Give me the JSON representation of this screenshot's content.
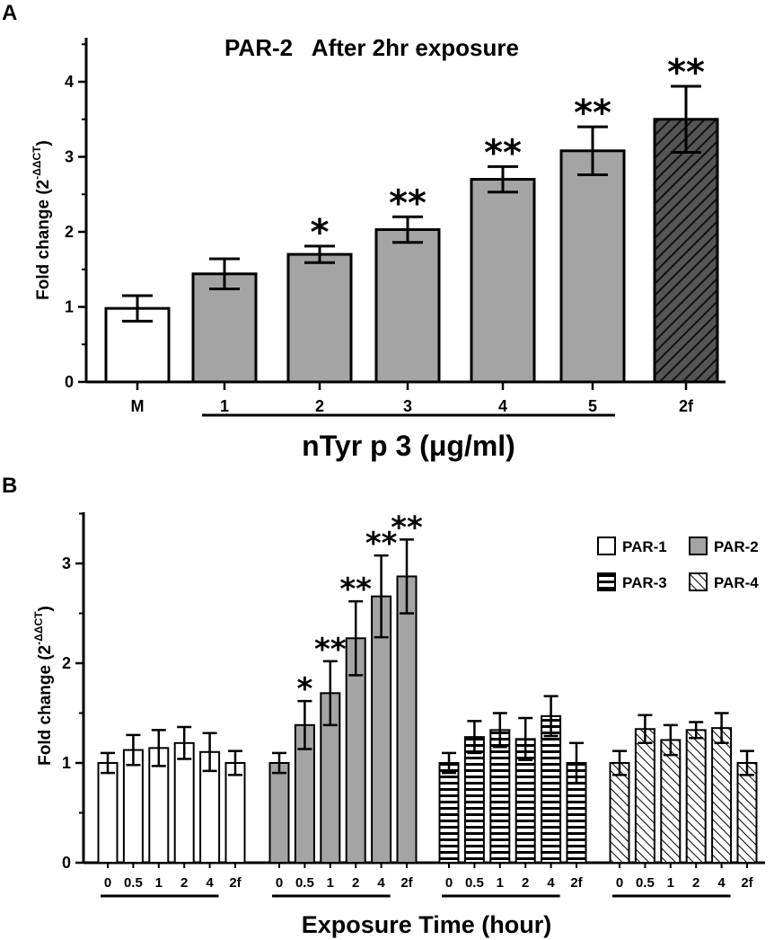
{
  "chart_data": [
    {
      "panel_label": "A",
      "type": "bar",
      "title": "PAR-2   After 2hr exposure",
      "ylabel": "Fold change (2",
      "ylabel_sup": "-ΔΔCT",
      "ylabel_close": ")",
      "xlabel": "nTyr p 3 (μg/ml)",
      "ylim": [
        0,
        4.5
      ],
      "yticks": [
        "0",
        "1",
        "2",
        "3",
        "4"
      ],
      "categories": [
        "M",
        "1",
        "2",
        "3",
        "4",
        "5",
        "2f"
      ],
      "values": [
        0.98,
        1.44,
        1.7,
        2.03,
        2.7,
        3.08,
        3.5
      ],
      "errors": [
        0.17,
        0.2,
        0.11,
        0.17,
        0.17,
        0.32,
        0.44
      ],
      "fills": [
        "white",
        "gray",
        "gray",
        "gray",
        "gray",
        "gray",
        "hatch"
      ],
      "significance": [
        "",
        "",
        "*",
        "**",
        "**",
        "**",
        "**"
      ],
      "underline_categories": [
        "1",
        "5"
      ]
    },
    {
      "panel_label": "B",
      "type": "bar",
      "ylabel": "Fold change (2",
      "ylabel_sup": "-ΔΔCT",
      "ylabel_close": ")",
      "xlabel": "Exposure Time (hour)",
      "ylim": [
        0,
        3.5
      ],
      "yticks": [
        "0",
        "1",
        "2",
        "3"
      ],
      "categories": [
        "0",
        "0.5",
        "1",
        "2",
        "4",
        "2f"
      ],
      "series": [
        {
          "name": "PAR-1",
          "fill": "white",
          "values": [
            1.0,
            1.13,
            1.15,
            1.2,
            1.11,
            1.0
          ],
          "errors": [
            0.1,
            0.15,
            0.18,
            0.16,
            0.19,
            0.12
          ],
          "significance": [
            "",
            "",
            "",
            "",
            "",
            ""
          ]
        },
        {
          "name": "PAR-2",
          "fill": "gray",
          "values": [
            1.0,
            1.38,
            1.7,
            2.25,
            2.67,
            2.87
          ],
          "errors": [
            0.1,
            0.24,
            0.32,
            0.37,
            0.41,
            0.37
          ],
          "significance": [
            "",
            "*",
            "**",
            "**",
            "**",
            "**"
          ]
        },
        {
          "name": "PAR-3",
          "fill": "horizontal",
          "values": [
            1.0,
            1.26,
            1.33,
            1.24,
            1.47,
            1.0
          ],
          "errors": [
            0.1,
            0.16,
            0.17,
            0.21,
            0.2,
            0.2
          ],
          "significance": [
            "",
            "",
            "",
            "",
            "",
            ""
          ]
        },
        {
          "name": "PAR-4",
          "fill": "diagonal",
          "values": [
            1.0,
            1.34,
            1.23,
            1.33,
            1.35,
            1.0
          ],
          "errors": [
            0.12,
            0.14,
            0.15,
            0.08,
            0.15,
            0.12
          ],
          "significance": [
            "",
            "",
            "",
            "",
            "",
            ""
          ]
        }
      ],
      "legend_position": "top-right"
    }
  ]
}
